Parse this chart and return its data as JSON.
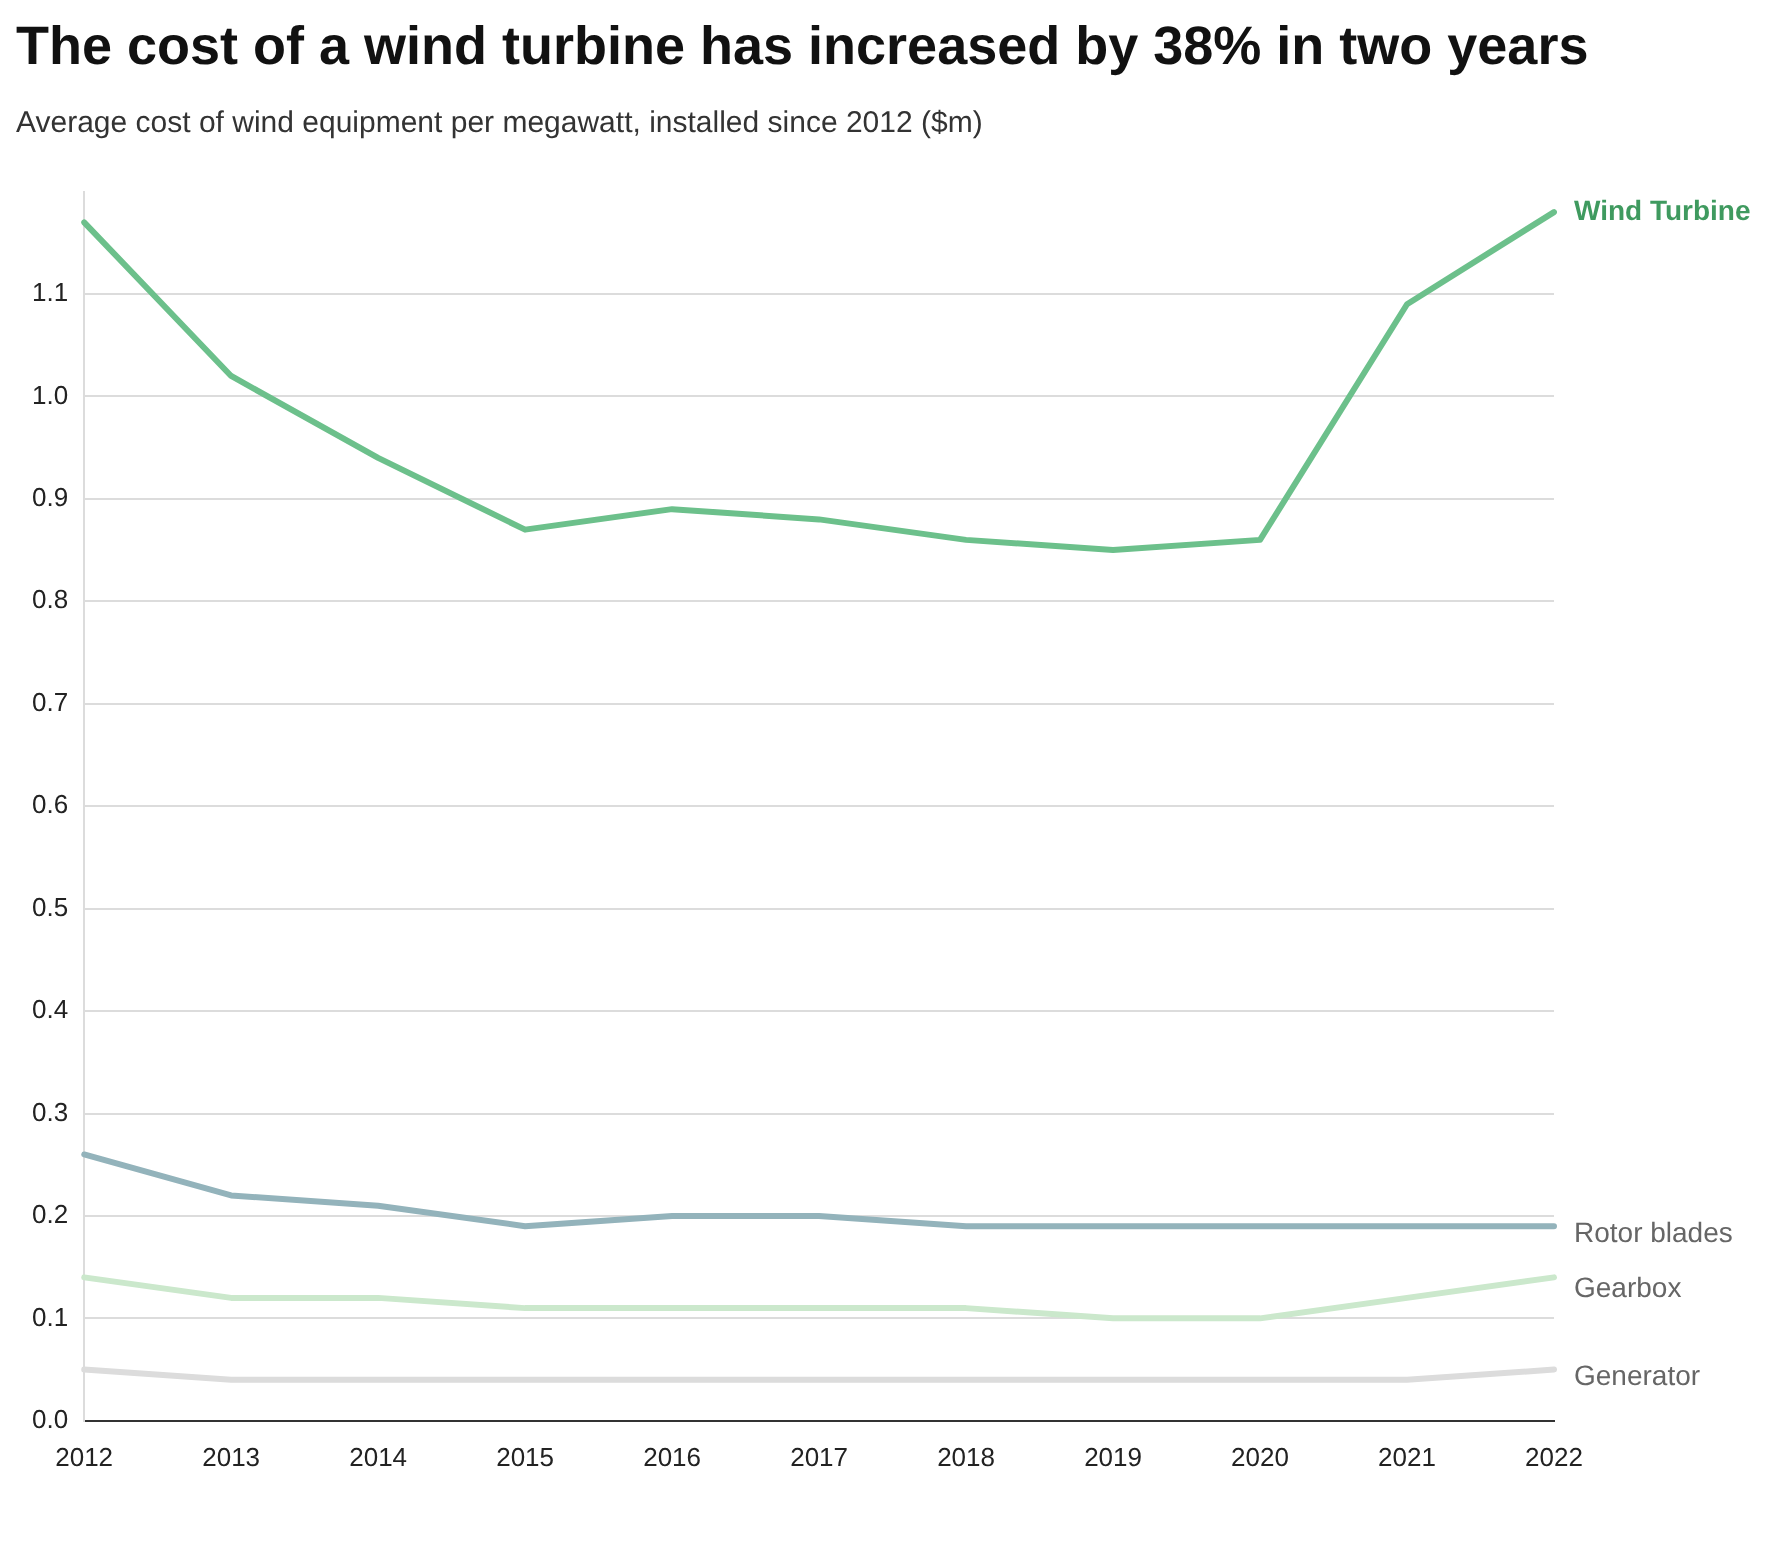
{
  "chart_data": {
    "type": "line",
    "title": "The cost of a wind turbine has increased by 38% in two years",
    "subtitle": "Average cost of wind equipment per megawatt, installed since 2012 ($m)",
    "categories": [
      "2012",
      "2013",
      "2014",
      "2015",
      "2016",
      "2017",
      "2018",
      "2019",
      "2020",
      "2021",
      "2022"
    ],
    "series": [
      {
        "name": "Wind Turbine",
        "color": "#6cc08b",
        "values": [
          1.17,
          1.02,
          0.94,
          0.87,
          0.89,
          0.88,
          0.86,
          0.85,
          0.86,
          1.09,
          1.18
        ]
      },
      {
        "name": "Rotor blades",
        "color": "#93b3bb",
        "values": [
          0.26,
          0.22,
          0.21,
          0.19,
          0.2,
          0.2,
          0.19,
          0.19,
          0.19,
          0.19,
          0.19
        ]
      },
      {
        "name": "Gearbox",
        "color": "#cbe8cc",
        "values": [
          0.14,
          0.12,
          0.12,
          0.11,
          0.11,
          0.11,
          0.11,
          0.1,
          0.1,
          0.12,
          0.14
        ]
      },
      {
        "name": "Generator",
        "color": "#dcdcdc",
        "values": [
          0.05,
          0.04,
          0.04,
          0.04,
          0.04,
          0.04,
          0.04,
          0.04,
          0.04,
          0.04,
          0.05
        ]
      }
    ],
    "ylim": [
      0,
      1.2
    ],
    "yticks": [
      {
        "value": 0,
        "label": "0.0"
      },
      0.1,
      0.2,
      0.3,
      0.4,
      0.5,
      0.6,
      0.7,
      0.8,
      0.9,
      {
        "value": 1,
        "label": "1.0"
      },
      1.1
    ],
    "grid": "y",
    "legend": false,
    "marker": "none",
    "line_style": "solid"
  }
}
